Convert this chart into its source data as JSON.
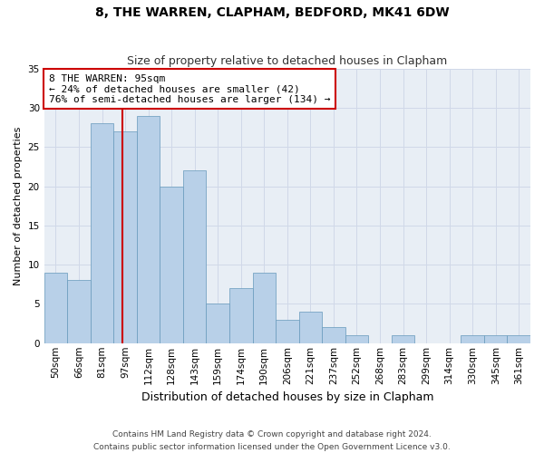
{
  "title": "8, THE WARREN, CLAPHAM, BEDFORD, MK41 6DW",
  "subtitle": "Size of property relative to detached houses in Clapham",
  "xlabel": "Distribution of detached houses by size in Clapham",
  "ylabel": "Number of detached properties",
  "categories": [
    "50sqm",
    "66sqm",
    "81sqm",
    "97sqm",
    "112sqm",
    "128sqm",
    "143sqm",
    "159sqm",
    "174sqm",
    "190sqm",
    "206sqm",
    "221sqm",
    "237sqm",
    "252sqm",
    "268sqm",
    "283sqm",
    "299sqm",
    "314sqm",
    "330sqm",
    "345sqm",
    "361sqm"
  ],
  "values": [
    9,
    8,
    28,
    27,
    29,
    20,
    22,
    5,
    7,
    9,
    3,
    4,
    2,
    1,
    0,
    1,
    0,
    0,
    1,
    1,
    1
  ],
  "bar_color": "#b8d0e8",
  "bar_edge_color": "#6699bb",
  "marker_line_color": "#cc0000",
  "annotation_text": "8 THE WARREN: 95sqm\n← 24% of detached houses are smaller (42)\n76% of semi-detached houses are larger (134) →",
  "annotation_box_color": "#ffffff",
  "annotation_box_edge_color": "#cc0000",
  "ylim": [
    0,
    35
  ],
  "yticks": [
    0,
    5,
    10,
    15,
    20,
    25,
    30,
    35
  ],
  "grid_color": "#d0d8e8",
  "background_color": "#e8eef5",
  "footer_text": "Contains HM Land Registry data © Crown copyright and database right 2024.\nContains public sector information licensed under the Open Government Licence v3.0.",
  "title_fontsize": 10,
  "subtitle_fontsize": 9,
  "xlabel_fontsize": 9,
  "ylabel_fontsize": 8,
  "tick_fontsize": 7.5,
  "annotation_fontsize": 8,
  "footer_fontsize": 6.5
}
